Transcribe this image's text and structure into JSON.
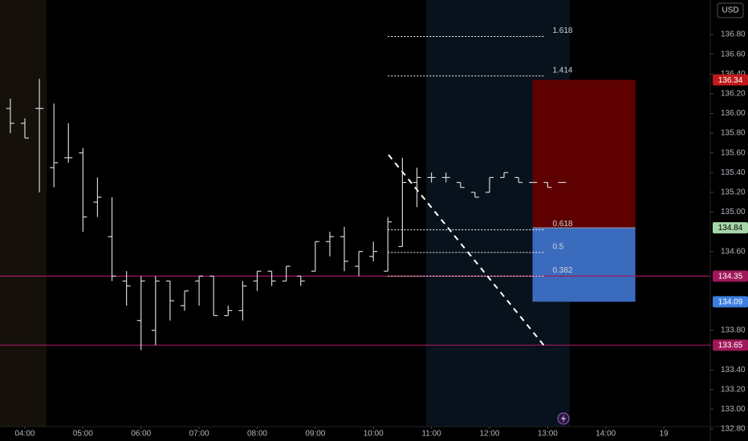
{
  "chart_data": {
    "type": "ohlc",
    "currency": "USD",
    "x": [
      3.75,
      4,
      4.25,
      4.5,
      4.75,
      5,
      5.25,
      5.5,
      5.75,
      6,
      6.25,
      6.5,
      6.75,
      7,
      7.25,
      7.5,
      7.75,
      8,
      8.25,
      8.5,
      8.75,
      9,
      9.25,
      9.5,
      9.75,
      10,
      10.25,
      10.5,
      10.75,
      11,
      11.25,
      11.5,
      11.75,
      12,
      12.25,
      12.5,
      12.75,
      13,
      13.25
    ],
    "open": [
      136.05,
      135.9,
      136.05,
      135.45,
      135.55,
      135.6,
      135.1,
      134.75,
      134.3,
      133.9,
      133.8,
      134.3,
      134.05,
      134.3,
      134.35,
      133.95,
      134.0,
      134.3,
      134.4,
      134.3,
      134.35,
      134.4,
      134.7,
      134.75,
      134.45,
      134.55,
      134.4,
      134.65,
      135.3,
      135.35,
      135.35,
      135.3,
      135.2,
      135.2,
      135.35,
      135.35,
      135.3,
      135.3,
      135.3
    ],
    "high": [
      136.15,
      135.95,
      136.35,
      136.1,
      135.9,
      135.65,
      135.35,
      135.15,
      134.4,
      134.35,
      134.35,
      134.3,
      134.2,
      134.35,
      134.35,
      134.05,
      134.3,
      134.4,
      134.4,
      134.45,
      134.35,
      134.7,
      134.8,
      134.85,
      134.6,
      134.7,
      134.95,
      135.55,
      135.45,
      135.4,
      135.4,
      135.3,
      135.2,
      135.35,
      135.4,
      135.35,
      135.3,
      135.3,
      135.3
    ],
    "low": [
      135.8,
      135.75,
      135.2,
      135.25,
      135.5,
      134.8,
      134.95,
      134.3,
      134.05,
      133.6,
      133.65,
      133.9,
      134.0,
      134.05,
      133.95,
      133.95,
      133.9,
      134.2,
      134.25,
      134.3,
      134.25,
      134.4,
      134.55,
      134.4,
      134.35,
      134.5,
      134.4,
      134.65,
      135.05,
      135.3,
      135.3,
      135.25,
      135.15,
      135.2,
      135.35,
      135.3,
      135.3,
      135.25,
      135.3
    ],
    "close": [
      135.9,
      135.75,
      136.05,
      135.5,
      135.55,
      134.95,
      135.15,
      134.35,
      134.25,
      134.3,
      134.3,
      134.1,
      134.2,
      134.35,
      133.95,
      134.0,
      134.25,
      134.4,
      134.3,
      134.45,
      134.3,
      134.7,
      134.75,
      134.5,
      134.6,
      134.6,
      134.9,
      135.3,
      135.35,
      135.35,
      135.35,
      135.25,
      135.15,
      135.35,
      135.4,
      135.3,
      135.3,
      135.25,
      135.3
    ],
    "color": "#d1d4dc",
    "xlim": [
      3.572,
      15.8
    ],
    "xticks": [
      {
        "value": 4,
        "label": "04:00"
      },
      {
        "value": 5,
        "label": "05:00"
      },
      {
        "value": 6,
        "label": "06:00"
      },
      {
        "value": 7,
        "label": "07:00"
      },
      {
        "value": 8,
        "label": "08:00"
      },
      {
        "value": 9,
        "label": "09:00"
      },
      {
        "value": 10,
        "label": "10:00"
      },
      {
        "value": 11,
        "label": "11:00"
      },
      {
        "value": 12,
        "label": "12:00"
      },
      {
        "value": 13,
        "label": "13:00"
      },
      {
        "value": 14,
        "label": "14:00"
      },
      {
        "value": 15,
        "label": "19"
      }
    ],
    "ylim": [
      132.8,
      137.15
    ],
    "yticks": [
      {
        "value": 136.8,
        "label": "136.80"
      },
      {
        "value": 136.6,
        "label": "136.60"
      },
      {
        "value": 136.4,
        "label": "136.40"
      },
      {
        "value": 136.2,
        "label": "136.20"
      },
      {
        "value": 136.0,
        "label": "136.00"
      },
      {
        "value": 135.8,
        "label": "135.80"
      },
      {
        "value": 135.6,
        "label": "135.60"
      },
      {
        "value": 135.4,
        "label": "135.40"
      },
      {
        "value": 135.2,
        "label": "135.20"
      },
      {
        "value": 135.0,
        "label": "135.00"
      },
      {
        "value": 134.6,
        "label": "134.60"
      },
      {
        "value": 133.8,
        "label": "133.80"
      },
      {
        "value": 133.4,
        "label": "133.40"
      },
      {
        "value": 133.2,
        "label": "133.20"
      },
      {
        "value": 133.0,
        "label": "133.00"
      },
      {
        "value": 132.8,
        "label": "132.80"
      }
    ],
    "hlines": [
      {
        "value": 134.35,
        "color": "#a0185a"
      },
      {
        "value": 133.65,
        "color": "#a0185a"
      }
    ],
    "fib": {
      "x": [
        10.25,
        12.96
      ],
      "color": "#ffffff",
      "levels": [
        {
          "level": 1.618,
          "price": 136.78
        },
        {
          "level": 1.414,
          "price": 136.38
        },
        {
          "level": 0.618,
          "price": 134.82
        },
        {
          "level": 0.5,
          "price": 134.59
        },
        {
          "level": 0.382,
          "price": 134.35
        }
      ]
    },
    "trendline": {
      "x": [
        10.26,
        12.96
      ],
      "y": [
        135.58,
        133.63
      ],
      "color": "#ffffff"
    },
    "position": {
      "x": [
        12.74,
        14.51
      ],
      "entry": 134.84,
      "stop": 136.34,
      "target": 134.09,
      "stop_color": "#5e0000",
      "target_color": "#3b6bbd",
      "entry_tag_color": "#a5d6a7",
      "stop_tag_color": "#c21a1a",
      "target_tag_color": "#3d7fe0"
    }
  }
}
